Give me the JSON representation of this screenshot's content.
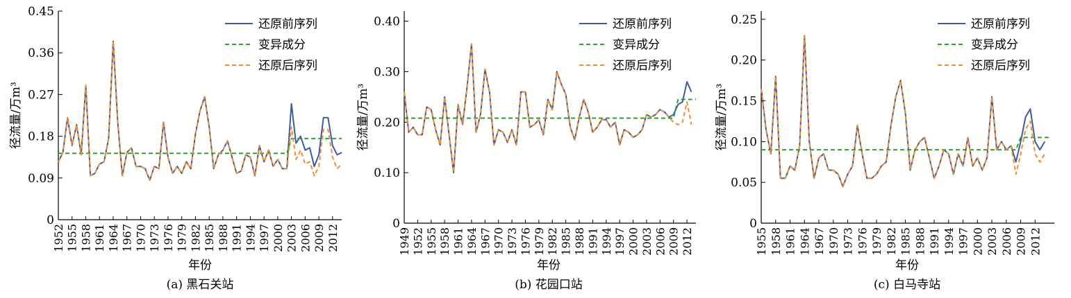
{
  "chart_data": [
    {
      "type": "line",
      "caption": "(a) 黑石关站",
      "xlabel": "年份",
      "ylabel": "径流量/万m³",
      "xlim": [
        1952,
        2014
      ],
      "ylim": [
        0,
        0.45
      ],
      "yticks": [
        0,
        0.09,
        0.18,
        0.27,
        0.36,
        0.45
      ],
      "ytick_labels": [
        "0",
        "0.09",
        "0.18",
        "0.27",
        "0.36",
        "0.45"
      ],
      "xticks": [
        1952,
        1955,
        1958,
        1961,
        1964,
        1967,
        1970,
        1973,
        1976,
        1979,
        1982,
        1985,
        1988,
        1991,
        1994,
        1997,
        2000,
        2003,
        2006,
        2009,
        2012
      ],
      "legend_position": "top-right",
      "series": [
        {
          "name": "还原前序列",
          "color": "#3b5ba5",
          "style": "solid",
          "x": [
            1952,
            1953,
            1954,
            1955,
            1956,
            1957,
            1958,
            1959,
            1960,
            1961,
            1962,
            1963,
            1964,
            1965,
            1966,
            1967,
            1968,
            1969,
            1970,
            1971,
            1972,
            1973,
            1974,
            1975,
            1976,
            1977,
            1978,
            1979,
            1980,
            1981,
            1982,
            1983,
            1984,
            1985,
            1986,
            1987,
            1988,
            1989,
            1990,
            1991,
            1992,
            1993,
            1994,
            1995,
            1996,
            1997,
            1998,
            1999,
            2000,
            2001,
            2002,
            2003,
            2004,
            2005,
            2006,
            2007,
            2008,
            2009,
            2010,
            2011,
            2012,
            2013,
            2014
          ],
          "y": [
            0.125,
            0.145,
            0.22,
            0.16,
            0.205,
            0.14,
            0.29,
            0.095,
            0.1,
            0.12,
            0.125,
            0.175,
            0.385,
            0.21,
            0.095,
            0.145,
            0.155,
            0.115,
            0.115,
            0.11,
            0.085,
            0.115,
            0.11,
            0.21,
            0.135,
            0.1,
            0.115,
            0.1,
            0.125,
            0.11,
            0.185,
            0.235,
            0.265,
            0.2,
            0.11,
            0.14,
            0.15,
            0.17,
            0.135,
            0.1,
            0.105,
            0.14,
            0.135,
            0.095,
            0.16,
            0.125,
            0.15,
            0.115,
            0.13,
            0.11,
            0.11,
            0.25,
            0.165,
            0.18,
            0.15,
            0.155,
            0.115,
            0.14,
            0.22,
            0.22,
            0.16,
            0.14,
            0.145
          ]
        },
        {
          "name": "变异成分",
          "color": "#2ca02c",
          "style": "dashed",
          "x": [
            1952,
            2002,
            2003,
            2014
          ],
          "y": [
            0.143,
            0.143,
            0.175,
            0.175
          ]
        },
        {
          "name": "还原后序列",
          "color": "#f28e2b",
          "style": "dashed",
          "x": [
            1952,
            1953,
            1954,
            1955,
            1956,
            1957,
            1958,
            1959,
            1960,
            1961,
            1962,
            1963,
            1964,
            1965,
            1966,
            1967,
            1968,
            1969,
            1970,
            1971,
            1972,
            1973,
            1974,
            1975,
            1976,
            1977,
            1978,
            1979,
            1980,
            1981,
            1982,
            1983,
            1984,
            1985,
            1986,
            1987,
            1988,
            1989,
            1990,
            1991,
            1992,
            1993,
            1994,
            1995,
            1996,
            1997,
            1998,
            1999,
            2000,
            2001,
            2002,
            2003,
            2004,
            2005,
            2006,
            2007,
            2008,
            2009,
            2010,
            2011,
            2012,
            2013,
            2014
          ],
          "y": [
            0.125,
            0.145,
            0.22,
            0.16,
            0.205,
            0.14,
            0.29,
            0.095,
            0.1,
            0.12,
            0.125,
            0.175,
            0.385,
            0.21,
            0.095,
            0.145,
            0.155,
            0.115,
            0.115,
            0.11,
            0.085,
            0.115,
            0.11,
            0.21,
            0.135,
            0.1,
            0.115,
            0.1,
            0.125,
            0.11,
            0.185,
            0.235,
            0.265,
            0.2,
            0.11,
            0.14,
            0.15,
            0.17,
            0.135,
            0.1,
            0.105,
            0.14,
            0.135,
            0.095,
            0.16,
            0.125,
            0.15,
            0.115,
            0.13,
            0.11,
            0.11,
            0.2,
            0.13,
            0.15,
            0.12,
            0.125,
            0.095,
            0.115,
            0.195,
            0.195,
            0.135,
            0.11,
            0.12
          ]
        }
      ]
    },
    {
      "type": "line",
      "caption": "(b) 花园口站",
      "xlabel": "年份",
      "ylabel": "径流量/万m³",
      "xlim": [
        1949,
        2014
      ],
      "ylim": [
        0,
        0.42
      ],
      "yticks": [
        0,
        0.1,
        0.2,
        0.3,
        0.4
      ],
      "ytick_labels": [
        "0",
        "0.10",
        "0.20",
        "0.30",
        "0.40"
      ],
      "xticks": [
        1949,
        1952,
        1955,
        1958,
        1961,
        1964,
        1967,
        1970,
        1973,
        1976,
        1979,
        1982,
        1985,
        1988,
        1991,
        1994,
        1997,
        2000,
        2003,
        2006,
        2009,
        2012
      ],
      "legend_position": "top-right",
      "series": [
        {
          "name": "还原前序列",
          "color": "#3b5ba5",
          "style": "solid",
          "x": [
            1949,
            1950,
            1951,
            1952,
            1953,
            1954,
            1955,
            1956,
            1957,
            1958,
            1959,
            1960,
            1961,
            1962,
            1963,
            1964,
            1965,
            1966,
            1967,
            1968,
            1969,
            1970,
            1971,
            1972,
            1973,
            1974,
            1975,
            1976,
            1977,
            1978,
            1979,
            1980,
            1981,
            1982,
            1983,
            1984,
            1985,
            1986,
            1987,
            1988,
            1989,
            1990,
            1991,
            1992,
            1993,
            1994,
            1995,
            1996,
            1997,
            1998,
            1999,
            2000,
            2001,
            2002,
            2003,
            2004,
            2005,
            2006,
            2007,
            2008,
            2009,
            2010,
            2011,
            2012,
            2013
          ],
          "y": [
            0.26,
            0.18,
            0.19,
            0.175,
            0.175,
            0.23,
            0.225,
            0.185,
            0.155,
            0.25,
            0.175,
            0.1,
            0.235,
            0.195,
            0.27,
            0.355,
            0.18,
            0.215,
            0.305,
            0.26,
            0.155,
            0.185,
            0.18,
            0.16,
            0.185,
            0.155,
            0.26,
            0.26,
            0.19,
            0.195,
            0.205,
            0.175,
            0.245,
            0.225,
            0.3,
            0.275,
            0.255,
            0.19,
            0.165,
            0.21,
            0.245,
            0.22,
            0.18,
            0.19,
            0.205,
            0.205,
            0.19,
            0.2,
            0.155,
            0.185,
            0.18,
            0.17,
            0.175,
            0.185,
            0.215,
            0.21,
            0.215,
            0.225,
            0.22,
            0.21,
            0.215,
            0.235,
            0.24,
            0.28,
            0.26
          ]
        },
        {
          "name": "变异成分",
          "color": "#2ca02c",
          "style": "dashed",
          "x": [
            1949,
            2009,
            2010,
            2014
          ],
          "y": [
            0.208,
            0.208,
            0.245,
            0.245
          ]
        },
        {
          "name": "还原后序列",
          "color": "#f28e2b",
          "style": "dashed",
          "x": [
            1949,
            1950,
            1951,
            1952,
            1953,
            1954,
            1955,
            1956,
            1957,
            1958,
            1959,
            1960,
            1961,
            1962,
            1963,
            1964,
            1965,
            1966,
            1967,
            1968,
            1969,
            1970,
            1971,
            1972,
            1973,
            1974,
            1975,
            1976,
            1977,
            1978,
            1979,
            1980,
            1981,
            1982,
            1983,
            1984,
            1985,
            1986,
            1987,
            1988,
            1989,
            1990,
            1991,
            1992,
            1993,
            1994,
            1995,
            1996,
            1997,
            1998,
            1999,
            2000,
            2001,
            2002,
            2003,
            2004,
            2005,
            2006,
            2007,
            2008,
            2009,
            2010,
            2011,
            2012,
            2013
          ],
          "y": [
            0.26,
            0.18,
            0.19,
            0.175,
            0.175,
            0.23,
            0.225,
            0.185,
            0.155,
            0.25,
            0.175,
            0.1,
            0.235,
            0.195,
            0.27,
            0.355,
            0.18,
            0.215,
            0.305,
            0.26,
            0.155,
            0.185,
            0.18,
            0.16,
            0.185,
            0.155,
            0.26,
            0.26,
            0.19,
            0.195,
            0.205,
            0.175,
            0.245,
            0.225,
            0.3,
            0.275,
            0.255,
            0.19,
            0.165,
            0.21,
            0.245,
            0.22,
            0.18,
            0.19,
            0.205,
            0.205,
            0.19,
            0.2,
            0.155,
            0.185,
            0.18,
            0.17,
            0.175,
            0.185,
            0.215,
            0.21,
            0.215,
            0.225,
            0.22,
            0.21,
            0.2,
            0.195,
            0.2,
            0.24,
            0.195
          ]
        }
      ]
    },
    {
      "type": "line",
      "caption": "(c) 白马寺站",
      "xlabel": "年份",
      "ylabel": "径流量/万m³",
      "xlim": [
        1955,
        2016
      ],
      "ylim": [
        0,
        0.26
      ],
      "yticks": [
        0,
        0.05,
        0.1,
        0.15,
        0.2,
        0.25
      ],
      "ytick_labels": [
        "0",
        "0.05",
        "0.10",
        "0.15",
        "0.20",
        "0.25"
      ],
      "xticks": [
        1955,
        1958,
        1961,
        1964,
        1967,
        1970,
        1973,
        1976,
        1979,
        1982,
        1985,
        1988,
        1991,
        1994,
        1997,
        2000,
        2003,
        2006,
        2009,
        2012
      ],
      "legend_position": "top-right",
      "series": [
        {
          "name": "还原前序列",
          "color": "#3b5ba5",
          "style": "solid",
          "x": [
            1955,
            1956,
            1957,
            1958,
            1959,
            1960,
            1961,
            1962,
            1963,
            1964,
            1965,
            1966,
            1967,
            1968,
            1969,
            1970,
            1971,
            1972,
            1973,
            1974,
            1975,
            1976,
            1977,
            1978,
            1979,
            1980,
            1981,
            1982,
            1983,
            1984,
            1985,
            1986,
            1987,
            1988,
            1989,
            1990,
            1991,
            1992,
            1993,
            1994,
            1995,
            1996,
            1997,
            1998,
            1999,
            2000,
            2001,
            2002,
            2003,
            2004,
            2005,
            2006,
            2007,
            2008,
            2009,
            2010,
            2011,
            2012,
            2013,
            2014
          ],
          "y": [
            0.165,
            0.115,
            0.085,
            0.18,
            0.055,
            0.055,
            0.07,
            0.065,
            0.095,
            0.23,
            0.1,
            0.055,
            0.08,
            0.085,
            0.065,
            0.065,
            0.06,
            0.045,
            0.06,
            0.07,
            0.12,
            0.085,
            0.055,
            0.055,
            0.06,
            0.07,
            0.075,
            0.12,
            0.155,
            0.175,
            0.135,
            0.065,
            0.09,
            0.1,
            0.105,
            0.08,
            0.055,
            0.07,
            0.09,
            0.085,
            0.06,
            0.085,
            0.07,
            0.105,
            0.07,
            0.08,
            0.065,
            0.08,
            0.155,
            0.09,
            0.1,
            0.09,
            0.095,
            0.075,
            0.1,
            0.13,
            0.14,
            0.1,
            0.09,
            0.1
          ]
        },
        {
          "name": "变异成分",
          "color": "#2ca02c",
          "style": "dashed",
          "x": [
            1955,
            2008,
            2009,
            2015
          ],
          "y": [
            0.09,
            0.09,
            0.105,
            0.105
          ]
        },
        {
          "name": "还原后序列",
          "color": "#f28e2b",
          "style": "dashed",
          "x": [
            1955,
            1956,
            1957,
            1958,
            1959,
            1960,
            1961,
            1962,
            1963,
            1964,
            1965,
            1966,
            1967,
            1968,
            1969,
            1970,
            1971,
            1972,
            1973,
            1974,
            1975,
            1976,
            1977,
            1978,
            1979,
            1980,
            1981,
            1982,
            1983,
            1984,
            1985,
            1986,
            1987,
            1988,
            1989,
            1990,
            1991,
            1992,
            1993,
            1994,
            1995,
            1996,
            1997,
            1998,
            1999,
            2000,
            2001,
            2002,
            2003,
            2004,
            2005,
            2006,
            2007,
            2008,
            2009,
            2010,
            2011,
            2012,
            2013,
            2014
          ],
          "y": [
            0.165,
            0.115,
            0.085,
            0.18,
            0.055,
            0.055,
            0.07,
            0.065,
            0.095,
            0.23,
            0.1,
            0.055,
            0.08,
            0.085,
            0.065,
            0.065,
            0.06,
            0.045,
            0.06,
            0.07,
            0.12,
            0.085,
            0.055,
            0.055,
            0.06,
            0.07,
            0.075,
            0.12,
            0.155,
            0.175,
            0.135,
            0.065,
            0.09,
            0.1,
            0.105,
            0.08,
            0.055,
            0.07,
            0.09,
            0.085,
            0.06,
            0.085,
            0.07,
            0.105,
            0.07,
            0.08,
            0.065,
            0.08,
            0.155,
            0.09,
            0.1,
            0.09,
            0.095,
            0.06,
            0.085,
            0.115,
            0.125,
            0.085,
            0.075,
            0.085
          ]
        }
      ]
    }
  ]
}
